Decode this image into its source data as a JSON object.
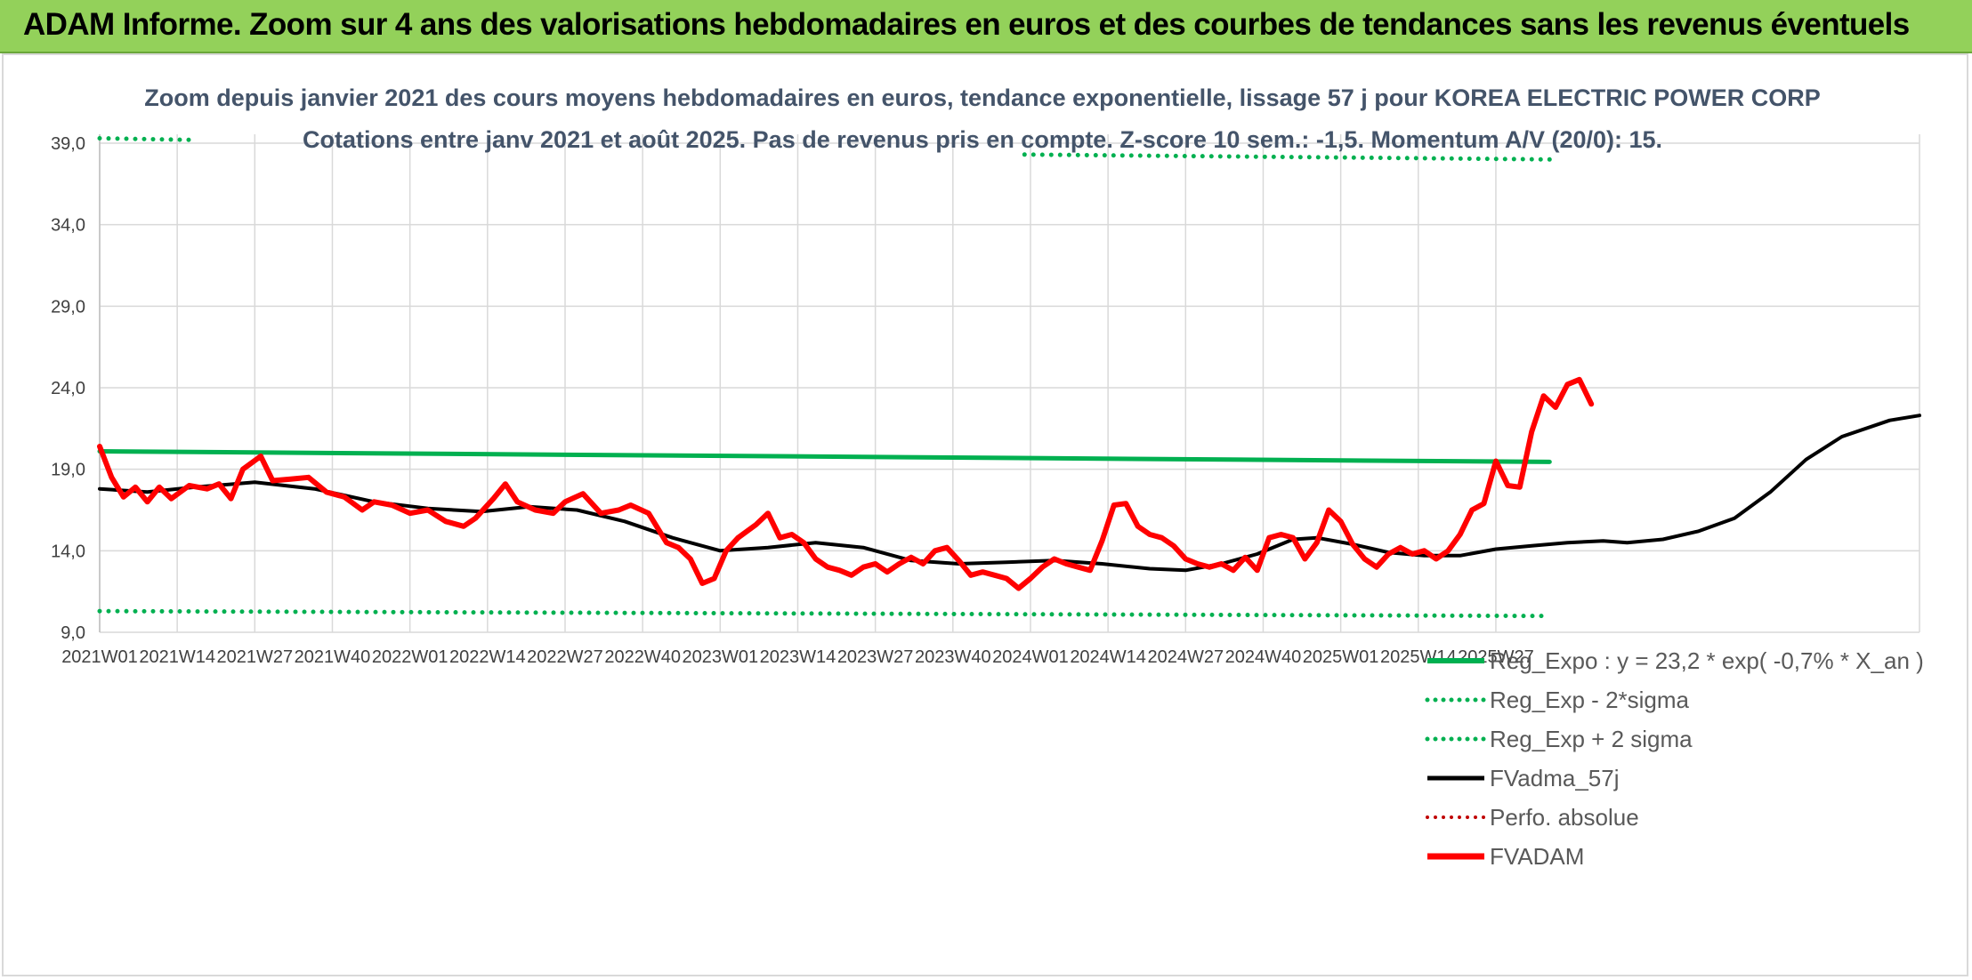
{
  "header": {
    "title": "ADAM Informe. Zoom sur 4 ans des valorisations hebdomadaires en euros et des courbes de tendances sans les revenus éventuels"
  },
  "colors": {
    "header_bg": "#93d15a",
    "reg_expo": "#00b050",
    "fvadam": "#ff0000",
    "fvadma": "#000000",
    "perfo": "#c00000",
    "grid": "#d9d9d9",
    "subtitle": "#44546a"
  },
  "chart_data": {
    "type": "line",
    "title": "Zoom depuis janvier 2021 des cours moyens hebdomadaires en euros, tendance exponentielle, lissage 57 j pour KOREA ELECTRIC POWER CORP",
    "subtitle": "Cotations entre janv 2021 et août 2025. Pas de revenus pris en compte. Z-score 10 sem.: -1,5. Momentum A/V (20/0): 15.",
    "ylim": [
      9.0,
      39.0
    ],
    "y_ticks": [
      "39,0",
      "34,0",
      "29,0",
      "24,0",
      "19,0",
      "14,0",
      "9,0"
    ],
    "y_tick_values": [
      39,
      34,
      29,
      24,
      19,
      14,
      9
    ],
    "x_labels": [
      "2021W01",
      "2021W14",
      "2021W27",
      "2021W40",
      "2022W01",
      "2022W14",
      "2022W27",
      "2022W40",
      "2023W01",
      "2023W14",
      "2023W27",
      "2023W40",
      "2024W01",
      "2024W14",
      "2024W27",
      "2024W40",
      "2025W01",
      "2025W14",
      "2025W27"
    ],
    "x_label_week_index": [
      0,
      13,
      26,
      39,
      52,
      65,
      78,
      91,
      104,
      117,
      130,
      143,
      156,
      169,
      182,
      195,
      208,
      221,
      234
    ],
    "n_weeks": 244,
    "grid": true,
    "legend_position": "right",
    "legend": [
      {
        "name": "Reg_Expo : y = 23,2 * exp( -0,7% * X_an )",
        "style": "solid-green"
      },
      {
        "name": "Reg_Exp - 2*sigma",
        "style": "dotted-green"
      },
      {
        "name": "Reg_Exp + 2 sigma",
        "style": "dotted-green"
      },
      {
        "name": "FVadma_57j",
        "style": "solid-black"
      },
      {
        "name": "Perfo. absolue",
        "style": "dotted-red"
      },
      {
        "name": "FVADAM",
        "style": "solid-red"
      }
    ],
    "series": [
      {
        "name": "Reg_Expo : y = 23,2 * exp( -0,7% * X_an )",
        "points": [
          [
            0,
            20.1
          ],
          [
            243,
            19.45
          ]
        ]
      },
      {
        "name": "Reg_Exp - 2*sigma",
        "points": [
          [
            0,
            10.3
          ],
          [
            243,
            10.0
          ]
        ]
      },
      {
        "name": "Reg_Exp + 2 sigma",
        "segments": [
          [
            [
              0,
              39.3
            ],
            [
              15,
              39.2
            ]
          ],
          [
            [
              155,
              38.3
            ],
            [
              243,
              38.0
            ]
          ]
        ]
      },
      {
        "name": "FVadma_57j",
        "points": [
          [
            0,
            17.8
          ],
          [
            8,
            17.6
          ],
          [
            16,
            17.9
          ],
          [
            26,
            18.2
          ],
          [
            36,
            17.8
          ],
          [
            46,
            17.0
          ],
          [
            55,
            16.6
          ],
          [
            64,
            16.4
          ],
          [
            72,
            16.7
          ],
          [
            80,
            16.5
          ],
          [
            88,
            15.8
          ],
          [
            96,
            14.8
          ],
          [
            104,
            14.0
          ],
          [
            112,
            14.2
          ],
          [
            120,
            14.5
          ],
          [
            128,
            14.2
          ],
          [
            136,
            13.4
          ],
          [
            144,
            13.2
          ],
          [
            152,
            13.3
          ],
          [
            160,
            13.4
          ],
          [
            168,
            13.2
          ],
          [
            176,
            12.9
          ],
          [
            182,
            12.8
          ],
          [
            188,
            13.2
          ],
          [
            194,
            13.8
          ],
          [
            200,
            14.7
          ],
          [
            204,
            14.8
          ],
          [
            210,
            14.4
          ],
          [
            216,
            13.9
          ],
          [
            222,
            13.7
          ],
          [
            228,
            13.7
          ],
          [
            234,
            14.1
          ],
          [
            240,
            14.3
          ],
          [
            246,
            14.5
          ],
          [
            252,
            14.6
          ],
          [
            256,
            14.5
          ],
          [
            262,
            14.7
          ],
          [
            268,
            15.2
          ],
          [
            274,
            16.0
          ],
          [
            280,
            17.6
          ],
          [
            286,
            19.6
          ],
          [
            292,
            21.0
          ],
          [
            300,
            22.0
          ],
          [
            305,
            22.3
          ]
        ]
      },
      {
        "name": "FVADAM",
        "points": [
          [
            0,
            20.4
          ],
          [
            2,
            18.5
          ],
          [
            4,
            17.3
          ],
          [
            6,
            17.9
          ],
          [
            8,
            17.0
          ],
          [
            10,
            17.9
          ],
          [
            12,
            17.2
          ],
          [
            15,
            18.0
          ],
          [
            18,
            17.8
          ],
          [
            20,
            18.1
          ],
          [
            22,
            17.2
          ],
          [
            24,
            19.0
          ],
          [
            27,
            19.8
          ],
          [
            29,
            18.3
          ],
          [
            32,
            18.4
          ],
          [
            35,
            18.5
          ],
          [
            38,
            17.6
          ],
          [
            41,
            17.3
          ],
          [
            44,
            16.5
          ],
          [
            46,
            17.0
          ],
          [
            49,
            16.8
          ],
          [
            52,
            16.3
          ],
          [
            55,
            16.5
          ],
          [
            58,
            15.8
          ],
          [
            61,
            15.5
          ],
          [
            63,
            16.0
          ],
          [
            66,
            17.2
          ],
          [
            68,
            18.1
          ],
          [
            70,
            17.0
          ],
          [
            73,
            16.5
          ],
          [
            76,
            16.3
          ],
          [
            78,
            17.0
          ],
          [
            81,
            17.5
          ],
          [
            84,
            16.3
          ],
          [
            87,
            16.5
          ],
          [
            89,
            16.8
          ],
          [
            92,
            16.3
          ],
          [
            95,
            14.5
          ],
          [
            97,
            14.2
          ],
          [
            99,
            13.5
          ],
          [
            101,
            12.0
          ],
          [
            103,
            12.3
          ],
          [
            105,
            14.0
          ],
          [
            107,
            14.8
          ],
          [
            110,
            15.6
          ],
          [
            112,
            16.3
          ],
          [
            114,
            14.8
          ],
          [
            116,
            15.0
          ],
          [
            118,
            14.5
          ],
          [
            120,
            13.5
          ],
          [
            122,
            13.0
          ],
          [
            124,
            12.8
          ],
          [
            126,
            12.5
          ],
          [
            128,
            13.0
          ],
          [
            130,
            13.2
          ],
          [
            132,
            12.7
          ],
          [
            134,
            13.2
          ],
          [
            136,
            13.6
          ],
          [
            138,
            13.2
          ],
          [
            140,
            14.0
          ],
          [
            142,
            14.2
          ],
          [
            144,
            13.4
          ],
          [
            146,
            12.5
          ],
          [
            148,
            12.7
          ],
          [
            150,
            12.5
          ],
          [
            152,
            12.3
          ],
          [
            154,
            11.7
          ],
          [
            156,
            12.3
          ],
          [
            158,
            13.0
          ],
          [
            160,
            13.5
          ],
          [
            162,
            13.2
          ],
          [
            164,
            13.0
          ],
          [
            166,
            12.8
          ],
          [
            168,
            14.6
          ],
          [
            170,
            16.8
          ],
          [
            172,
            16.9
          ],
          [
            174,
            15.5
          ],
          [
            176,
            15.0
          ],
          [
            178,
            14.8
          ],
          [
            180,
            14.3
          ],
          [
            182,
            13.5
          ],
          [
            184,
            13.2
          ],
          [
            186,
            13.0
          ],
          [
            188,
            13.2
          ],
          [
            190,
            12.8
          ],
          [
            192,
            13.6
          ],
          [
            194,
            12.8
          ],
          [
            196,
            14.8
          ],
          [
            198,
            15.0
          ],
          [
            200,
            14.8
          ],
          [
            202,
            13.5
          ],
          [
            204,
            14.5
          ],
          [
            206,
            16.5
          ],
          [
            208,
            15.8
          ],
          [
            210,
            14.4
          ],
          [
            212,
            13.5
          ],
          [
            214,
            13.0
          ],
          [
            216,
            13.8
          ],
          [
            218,
            14.2
          ],
          [
            220,
            13.8
          ],
          [
            222,
            14.0
          ],
          [
            224,
            13.5
          ],
          [
            226,
            14.0
          ],
          [
            228,
            15.0
          ],
          [
            230,
            16.5
          ],
          [
            232,
            16.9
          ],
          [
            234,
            19.5
          ],
          [
            236,
            18.0
          ],
          [
            238,
            17.9
          ],
          [
            240,
            21.3
          ],
          [
            242,
            23.5
          ],
          [
            244,
            22.8
          ],
          [
            246,
            24.2
          ],
          [
            248,
            24.5
          ],
          [
            250,
            23.0
          ]
        ]
      }
    ]
  }
}
